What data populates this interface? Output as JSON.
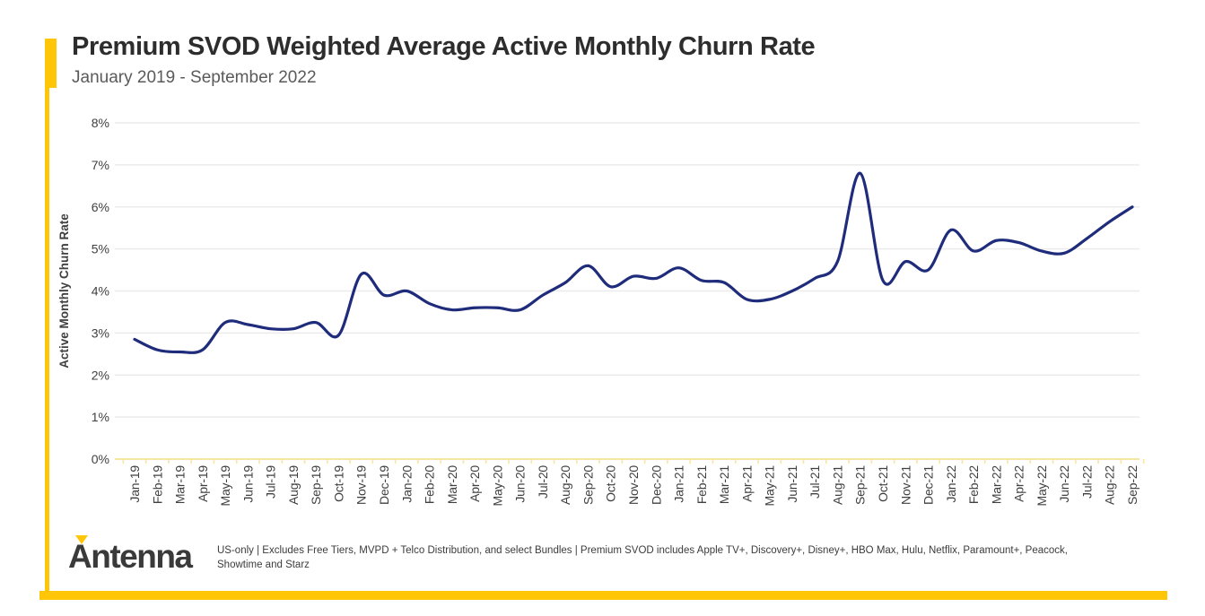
{
  "header": {
    "title": "Premium SVOD Weighted Average Active Monthly Churn Rate",
    "subtitle": "January 2019 - September 2022"
  },
  "colors": {
    "accent_yellow": "#FFC608",
    "pale_axis_yellow": "#F8E5A0",
    "line_navy": "#1F2C7B",
    "gridline_gray": "#EBEBEB",
    "axis_text": "#3F3F3F"
  },
  "chart_data": {
    "type": "line",
    "title": "Premium SVOD Weighted Average Active Monthly Churn Rate",
    "xlabel": "",
    "ylabel": "Active Monthly Churn Rate",
    "ylim": [
      0,
      8
    ],
    "ytick_labels": [
      "0%",
      "1%",
      "2%",
      "3%",
      "4%",
      "5%",
      "6%",
      "7%",
      "8%"
    ],
    "grid": true,
    "legend_position": "none",
    "categories": [
      "Jan-19",
      "Feb-19",
      "Mar-19",
      "Apr-19",
      "May-19",
      "Jun-19",
      "Jul-19",
      "Aug-19",
      "Sep-19",
      "Oct-19",
      "Nov-19",
      "Dec-19",
      "Jan-20",
      "Feb-20",
      "Mar-20",
      "Apr-20",
      "May-20",
      "Jun-20",
      "Jul-20",
      "Aug-20",
      "Sep-20",
      "Oct-20",
      "Nov-20",
      "Dec-20",
      "Jan-21",
      "Feb-21",
      "Mar-21",
      "Apr-21",
      "May-21",
      "Jun-21",
      "Jul-21",
      "Aug-21",
      "Sep-21",
      "Oct-21",
      "Nov-21",
      "Dec-21",
      "Jan-22",
      "Feb-22",
      "Mar-22",
      "Apr-22",
      "May-22",
      "Jun-22",
      "Jul-22",
      "Aug-22",
      "Sep-22"
    ],
    "series": [
      {
        "name": "Weighted Average Active Monthly Churn Rate (%)",
        "values": [
          2.85,
          2.6,
          2.55,
          2.6,
          3.25,
          3.2,
          3.1,
          3.1,
          3.25,
          2.95,
          4.4,
          3.9,
          4.0,
          3.7,
          3.55,
          3.6,
          3.6,
          3.55,
          3.9,
          4.2,
          4.6,
          4.1,
          4.35,
          4.3,
          4.55,
          4.25,
          4.2,
          3.8,
          3.8,
          4.0,
          4.3,
          4.7,
          6.8,
          4.25,
          4.7,
          4.5,
          5.45,
          4.95,
          5.2,
          5.15,
          4.95,
          4.9,
          5.25,
          5.65,
          6.0
        ]
      }
    ]
  },
  "footer": {
    "logo_text": "Antenna",
    "disclaimer": "US-only | Excludes Free Tiers, MVPD + Telco Distribution, and select Bundles | Premium SVOD includes Apple TV+, Discovery+, Disney+, HBO Max, Hulu, Netflix, Paramount+, Peacock, Showtime and Starz"
  }
}
